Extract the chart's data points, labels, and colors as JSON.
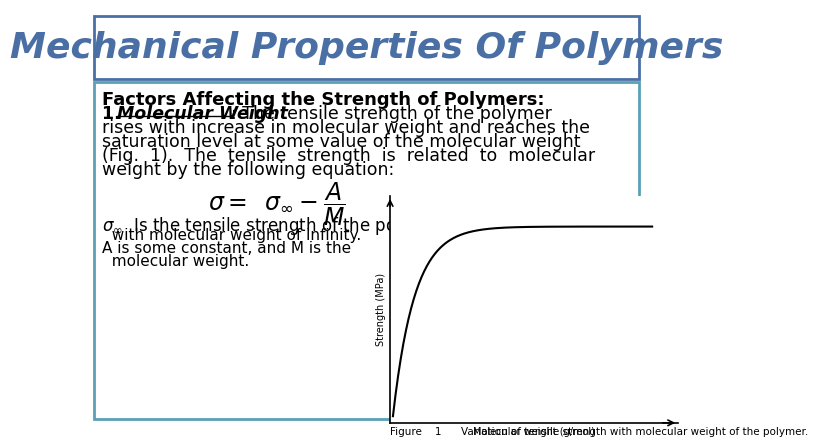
{
  "title": "Mechanical Properties Of Polymers",
  "title_color": "#4a6fa5",
  "title_fontsize": 26,
  "bg_color": "#ffffff",
  "outer_border_color": "#4a6fa5",
  "inner_border_color": "#5ba0b5",
  "heading": "Factors Affecting the Strength of Polymers:",
  "heading_fontsize": 13,
  "body_fontsize": 12.5,
  "small_fontsize": 11,
  "caption_fontsize": 7.5,
  "formula": "$\\sigma = \\;\\; \\sigma_{\\infty} - \\dfrac{A}{M}$",
  "fig_caption": "Figure    1      Variation of tensile strength with molecular weight of the polymer.",
  "xlabel": "Molecular weight (g/mol)",
  "ylabel": "Strength (MPa)"
}
